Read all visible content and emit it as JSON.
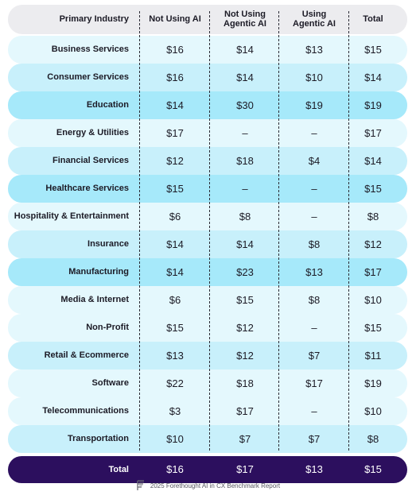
{
  "chart_data": {
    "type": "table",
    "columns": [
      "Primary Industry",
      "Not Using AI",
      "Not Using Agentic AI",
      "Using Agentic AI",
      "Total"
    ],
    "header": {
      "industry": "Primary Industry",
      "col1": "Not Using AI",
      "col2_line1": "Not Using",
      "col2_line2": "Agentic AI",
      "col3_line1": "Using",
      "col3_line2": "Agentic AI",
      "col4": "Total"
    },
    "rows": [
      {
        "industry": "Business Services",
        "not_using_ai": "$16",
        "not_using_agentic_ai": "$14",
        "using_agentic_ai": "$13",
        "total": "$15"
      },
      {
        "industry": "Consumer Services",
        "not_using_ai": "$16",
        "not_using_agentic_ai": "$14",
        "using_agentic_ai": "$10",
        "total": "$14"
      },
      {
        "industry": "Education",
        "not_using_ai": "$14",
        "not_using_agentic_ai": "$30",
        "using_agentic_ai": "$19",
        "total": "$19"
      },
      {
        "industry": "Energy & Utilities",
        "not_using_ai": "$17",
        "not_using_agentic_ai": "–",
        "using_agentic_ai": "–",
        "total": "$17"
      },
      {
        "industry": "Financial Services",
        "not_using_ai": "$12",
        "not_using_agentic_ai": "$18",
        "using_agentic_ai": "$4",
        "total": "$14"
      },
      {
        "industry": "Healthcare Services",
        "not_using_ai": "$15",
        "not_using_agentic_ai": "–",
        "using_agentic_ai": "–",
        "total": "$15"
      },
      {
        "industry": "Hospitality & Entertainment",
        "not_using_ai": "$6",
        "not_using_agentic_ai": "$8",
        "using_agentic_ai": "–",
        "total": "$8"
      },
      {
        "industry": "Insurance",
        "not_using_ai": "$14",
        "not_using_agentic_ai": "$14",
        "using_agentic_ai": "$8",
        "total": "$12"
      },
      {
        "industry": "Manufacturing",
        "not_using_ai": "$14",
        "not_using_agentic_ai": "$23",
        "using_agentic_ai": "$13",
        "total": "$17"
      },
      {
        "industry": "Media & Internet",
        "not_using_ai": "$6",
        "not_using_agentic_ai": "$15",
        "using_agentic_ai": "$8",
        "total": "$10"
      },
      {
        "industry": "Non-Profit",
        "not_using_ai": "$15",
        "not_using_agentic_ai": "$12",
        "using_agentic_ai": "–",
        "total": "$15"
      },
      {
        "industry": "Retail & Ecommerce",
        "not_using_ai": "$13",
        "not_using_agentic_ai": "$12",
        "using_agentic_ai": "$7",
        "total": "$11"
      },
      {
        "industry": "Software",
        "not_using_ai": "$22",
        "not_using_agentic_ai": "$18",
        "using_agentic_ai": "$17",
        "total": "$19"
      },
      {
        "industry": "Telecommunications",
        "not_using_ai": "$3",
        "not_using_agentic_ai": "$17",
        "using_agentic_ai": "–",
        "total": "$10"
      },
      {
        "industry": "Transportation",
        "not_using_ai": "$10",
        "not_using_agentic_ai": "$7",
        "using_agentic_ai": "$7",
        "total": "$8"
      }
    ],
    "total_row": {
      "industry": "Total",
      "not_using_ai": "$16",
      "not_using_agentic_ai": "$17",
      "using_agentic_ai": "$13",
      "total": "$15"
    },
    "colors": {
      "header_bg": "#ececef",
      "row_light": "#e4f8fd",
      "row_mid": "#c8f0fb",
      "row_strong": "#a6e9fa",
      "total_bg": "#2c0f5e",
      "divider": "#2b2b35"
    }
  },
  "footer": {
    "logo_icon": "forethought-logo-icon",
    "text": "2025 Forethought AI in CX Benchmark Report"
  }
}
